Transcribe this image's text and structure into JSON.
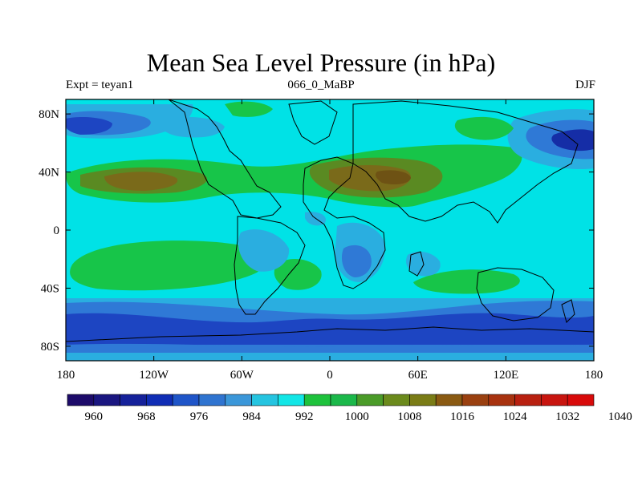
{
  "title": "Mean Sea Level Pressure (in hPa)",
  "left_string": "Expt = teyan1",
  "center_string": "066_0_MaBP",
  "right_string": "DJF",
  "lat_ticks": [
    "80N",
    "40N",
    "0",
    "40S",
    "80S"
  ],
  "lon_ticks": [
    "180",
    "120W",
    "60W",
    "0",
    "60E",
    "120E",
    "180"
  ],
  "colorbar": {
    "labels": [
      "960",
      "968",
      "976",
      "984",
      "992",
      "1000",
      "1008",
      "1016",
      "1024",
      "1032",
      "1040"
    ],
    "colors": [
      "#1d0b6a",
      "#1a1680",
      "#15219a",
      "#102db5",
      "#1f55c8",
      "#2f74d0",
      "#3b97d9",
      "#25c4e0",
      "#12e6e6",
      "#1ec23c",
      "#1bb84a",
      "#4a9b28",
      "#6b8a1c",
      "#7a7c16",
      "#8a5a12",
      "#9a4010",
      "#a8320f",
      "#b82010",
      "#c8150f",
      "#d80a0a"
    ]
  },
  "map_colors": {
    "ocean_base": "#00e2e6",
    "light_cyan": "#2ee0e8",
    "cyan_blue": "#2aaee0",
    "medium_blue": "#2f79d6",
    "deep_blue": "#1d45c2",
    "navy": "#152da6",
    "green": "#17c549",
    "light_green": "#3ed25a",
    "olive": "#5a8a22",
    "brown": "#7a6a1a",
    "dark_brown": "#6e5214"
  }
}
